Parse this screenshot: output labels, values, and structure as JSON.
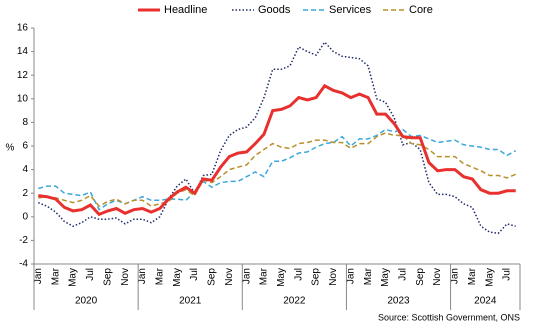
{
  "chart_data": {
    "type": "line",
    "y_label": "%",
    "source": "Source: Scottish Government, ONS",
    "categories": [
      "Jan",
      null,
      "Mar",
      null,
      "May",
      null,
      "Jul",
      null,
      "Sep",
      null,
      "Nov",
      null,
      "Jan",
      null,
      "Mar",
      null,
      "May",
      null,
      "Jul",
      null,
      "Sep",
      null,
      "Nov",
      null,
      "Jan",
      null,
      "Mar",
      null,
      "May",
      null,
      "Jul",
      null,
      "Sep",
      null,
      "Nov",
      null,
      "Jan",
      null,
      "Mar",
      null,
      "May",
      null,
      "Jul",
      null,
      "Sep",
      null,
      "Nov",
      null,
      "Jan",
      null,
      "Mar",
      null,
      "May",
      null,
      "Jul",
      null
    ],
    "years": [
      "2020",
      "2021",
      "2022",
      "2023",
      "2024"
    ],
    "ylim": [
      -4,
      16
    ],
    "yticks": [
      -4,
      -2,
      0,
      2,
      4,
      6,
      8,
      10,
      12,
      14,
      16
    ],
    "series": [
      {
        "name": "Headline",
        "color": "#e8312f",
        "dash": "solid",
        "values": [
          1.8,
          1.7,
          1.5,
          0.8,
          0.5,
          0.6,
          1.0,
          0.2,
          0.5,
          0.7,
          0.3,
          0.6,
          0.7,
          0.4,
          0.7,
          1.5,
          2.1,
          2.5,
          2.0,
          3.2,
          3.1,
          4.2,
          5.1,
          5.4,
          5.5,
          6.2,
          7.0,
          9.0,
          9.1,
          9.4,
          10.1,
          9.9,
          10.1,
          11.1,
          10.7,
          10.5,
          10.1,
          10.4,
          10.1,
          8.7,
          8.7,
          7.9,
          6.8,
          6.7,
          6.7,
          4.6,
          3.9,
          4.0,
          4.0,
          3.4,
          3.2,
          2.3,
          2.0,
          2.0,
          2.2,
          2.2
        ]
      },
      {
        "name": "Goods",
        "color": "#1f2a6b",
        "dash": "dotted",
        "values": [
          1.2,
          0.9,
          0.4,
          -0.4,
          -0.8,
          -0.5,
          0.0,
          -0.2,
          -0.2,
          -0.1,
          -0.6,
          -0.2,
          -0.2,
          -0.5,
          0.0,
          1.5,
          2.6,
          3.2,
          2.0,
          3.5,
          3.6,
          5.6,
          6.9,
          7.4,
          7.6,
          8.4,
          10.1,
          12.5,
          12.5,
          12.8,
          14.4,
          14.0,
          13.7,
          14.8,
          14.0,
          13.6,
          13.5,
          13.4,
          12.8,
          10.0,
          9.7,
          8.4,
          6.1,
          6.3,
          5.7,
          2.9,
          1.9,
          1.9,
          1.7,
          1.1,
          0.8,
          -0.8,
          -1.3,
          -1.4,
          -0.6,
          -0.8
        ]
      },
      {
        "name": "Services",
        "color": "#3ba7dd",
        "dash": "dashed",
        "values": [
          2.4,
          2.6,
          2.6,
          2.0,
          1.9,
          1.8,
          2.1,
          0.6,
          1.1,
          1.4,
          1.1,
          1.4,
          1.7,
          1.4,
          1.4,
          1.5,
          1.5,
          1.4,
          2.1,
          3.0,
          2.5,
          2.9,
          3.0,
          3.0,
          3.4,
          3.8,
          3.4,
          4.7,
          4.7,
          5.0,
          5.4,
          5.5,
          5.9,
          6.2,
          6.3,
          6.8,
          6.0,
          6.6,
          6.6,
          6.9,
          7.4,
          7.2,
          7.4,
          6.8,
          6.9,
          6.6,
          6.3,
          6.4,
          6.5,
          6.1,
          6.0,
          5.9,
          5.7,
          5.7,
          5.2,
          5.6
        ]
      },
      {
        "name": "Core",
        "color": "#b8902a",
        "dash": "dashed",
        "values": [
          1.6,
          1.7,
          1.6,
          1.4,
          1.2,
          1.4,
          1.8,
          0.9,
          1.3,
          1.5,
          1.1,
          1.4,
          1.4,
          0.9,
          1.1,
          1.3,
          2.0,
          2.3,
          1.8,
          3.1,
          2.9,
          3.4,
          4.0,
          4.2,
          4.4,
          5.2,
          5.7,
          6.2,
          5.9,
          5.8,
          6.2,
          6.3,
          6.5,
          6.5,
          6.3,
          6.3,
          5.8,
          6.2,
          6.2,
          6.8,
          7.1,
          6.9,
          6.9,
          6.2,
          6.1,
          5.7,
          5.1,
          5.1,
          5.1,
          4.5,
          4.2,
          3.9,
          3.5,
          3.5,
          3.3,
          3.6
        ]
      }
    ]
  }
}
